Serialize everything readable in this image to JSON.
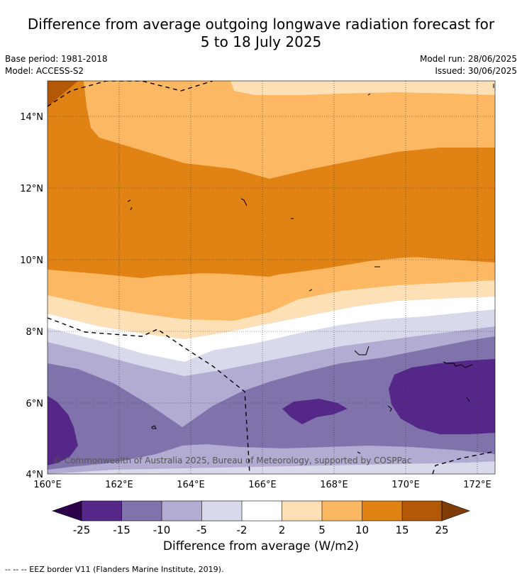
{
  "header": {
    "title_line1": "Difference from average outgoing longwave radiation forecast for",
    "title_line2": "5 to 18 July 2025",
    "base_period": "Base period: 1981-2018",
    "model": "Model: ACCESS-S2",
    "model_run": "Model run: 28/06/2025",
    "issued": "Issued: 30/06/2025"
  },
  "map": {
    "lat_labels": [
      "14°N",
      "12°N",
      "10°N",
      "8°N",
      "6°N",
      "4°N"
    ],
    "lon_labels": [
      "160°E",
      "162°E",
      "164°E",
      "166°E",
      "168°E",
      "170°E",
      "172°E"
    ],
    "copyright": "© Commonwealth of Australia 2025, Bureau of Meteorology, supported by COSPPac",
    "colors": {
      "lt25": "#2d004b",
      "m25_m15": "#542788",
      "m15_m10": "#8073ac",
      "m10_m5": "#b2abd2",
      "m5_m2": "#d8daeb",
      "m2_2": "#ffffff",
      "2_5": "#fee0b6",
      "5_10": "#fdb863",
      "10_15": "#e08214",
      "15_25": "#b35806",
      "gt25": "#7f3b08"
    }
  },
  "colorbar": {
    "ticks": [
      "-25",
      "-15",
      "-10",
      "-5",
      "-2",
      "2",
      "5",
      "10",
      "15",
      "25"
    ],
    "label": "Difference from average (W/m2)"
  },
  "footer": {
    "legend": "--  --  -- EEZ border V11 (Flanders Marine Institute, 2019)."
  }
}
